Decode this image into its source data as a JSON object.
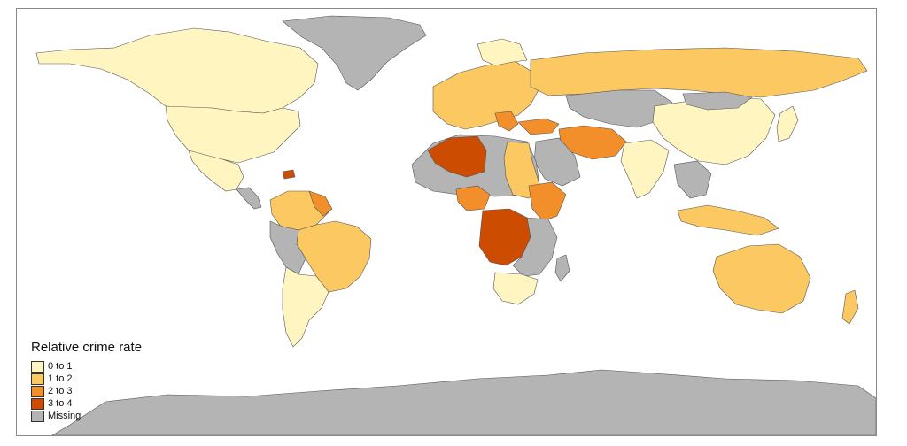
{
  "map": {
    "legend": {
      "title": "Relative crime rate",
      "items": [
        {
          "label": "0 to 1",
          "color": "#fff5c0"
        },
        {
          "label": "1 to 2",
          "color": "#fcc862"
        },
        {
          "label": "2 to 3",
          "color": "#f28f2a"
        },
        {
          "label": "3 to 4",
          "color": "#cc4c02"
        },
        {
          "label": "Missing",
          "color": "#b4b4b4"
        }
      ]
    },
    "colors": {
      "low": "#fff5c0",
      "mid": "#fcc862",
      "high": "#f28f2a",
      "top": "#cc4c02",
      "missing": "#b4b4b4",
      "border": "#555555"
    }
  }
}
